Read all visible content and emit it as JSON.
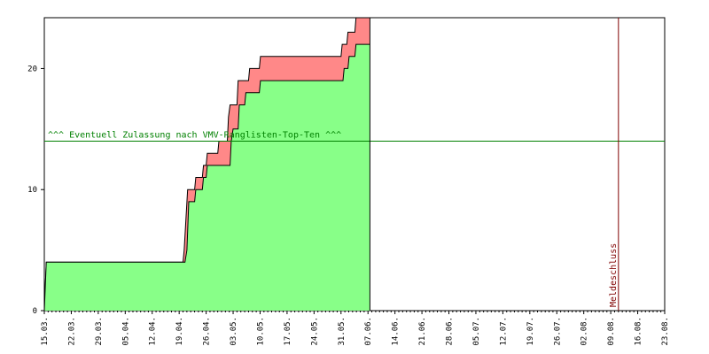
{
  "chart_data": {
    "type": "area",
    "title": "",
    "xlabel": "",
    "ylabel": "",
    "x_tick_labels": [
      "15.03.",
      "22.03.",
      "29.03.",
      "05.04.",
      "12.04.",
      "19.04.",
      "26.04.",
      "03.05.",
      "10.05.",
      "17.05.",
      "24.05.",
      "31.05.",
      "07.06.",
      "14.06.",
      "21.06.",
      "28.06.",
      "05.07.",
      "12.07.",
      "19.07.",
      "26.07.",
      "02.08.",
      "09.08.",
      "16.08.",
      "23.08."
    ],
    "y_ticks": [
      0,
      10,
      20
    ],
    "ylim": [
      0,
      24.2
    ],
    "x_unit": "days since 15.03.",
    "xlim": [
      0,
      161
    ],
    "series": [
      {
        "color": "#ff8888",
        "values": [
          [
            0,
            0
          ],
          [
            0.5,
            4
          ],
          [
            36,
            4
          ],
          [
            36.3,
            5
          ],
          [
            37.2,
            10
          ],
          [
            39,
            10
          ],
          [
            39.3,
            11
          ],
          [
            41,
            11
          ],
          [
            41.3,
            12
          ],
          [
            42,
            12
          ],
          [
            42.3,
            13
          ],
          [
            45,
            13
          ],
          [
            45.3,
            14
          ],
          [
            47.5,
            14
          ],
          [
            47.8,
            16
          ],
          [
            48.2,
            17
          ],
          [
            50,
            17
          ],
          [
            50.3,
            19
          ],
          [
            53,
            19
          ],
          [
            53.3,
            20
          ],
          [
            55.8,
            20
          ],
          [
            56.1,
            21
          ],
          [
            77,
            21
          ],
          [
            77.3,
            22
          ],
          [
            78.5,
            22
          ],
          [
            78.8,
            23
          ],
          [
            80.6,
            23
          ],
          [
            80.9,
            24.2
          ],
          [
            84.5,
            24.2
          ]
        ]
      },
      {
        "color": "#88ff88",
        "values": [
          [
            0,
            0
          ],
          [
            0.5,
            4
          ],
          [
            36.5,
            4
          ],
          [
            37,
            5
          ],
          [
            37.5,
            9
          ],
          [
            39,
            9
          ],
          [
            39.3,
            10
          ],
          [
            41,
            10
          ],
          [
            41.3,
            11
          ],
          [
            42,
            11
          ],
          [
            42.3,
            12
          ],
          [
            48.2,
            12
          ],
          [
            48.5,
            14
          ],
          [
            49,
            15
          ],
          [
            50.3,
            15
          ],
          [
            50.6,
            17
          ],
          [
            52,
            17
          ],
          [
            52.3,
            18
          ],
          [
            55.8,
            18
          ],
          [
            56.1,
            19
          ],
          [
            77.5,
            19
          ],
          [
            77.8,
            20
          ],
          [
            78.8,
            20
          ],
          [
            79.1,
            21
          ],
          [
            80.6,
            21
          ],
          [
            80.9,
            22
          ],
          [
            84.5,
            22
          ]
        ]
      }
    ],
    "current_date_x": 84.5,
    "threshold": {
      "y": 14,
      "color": "#008000",
      "label": "^^^ Eventuell Zulassung nach VMV-Ranglisten-Top-Ten ^^^"
    },
    "deadline": {
      "x": 149,
      "color": "#800000",
      "label": "Meldeschluss"
    },
    "grid": false
  }
}
